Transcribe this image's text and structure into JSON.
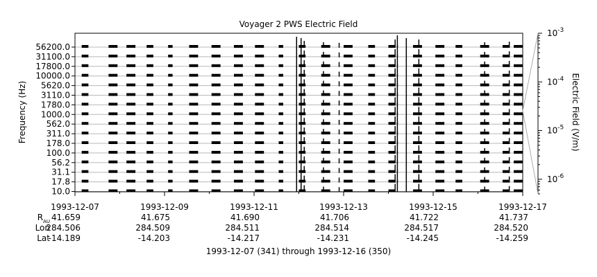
{
  "chart_data": {
    "type": "line",
    "title": "Voyager 2 PWS Electric Field",
    "ylabel": "Frequency (Hz)",
    "y2label": "Electric Field (V/m)",
    "xlabel": "1993-12-07 (341) through 1993-12-16 (350)",
    "frequency_channels": [
      "56200.0",
      "31100.0",
      "17800.0",
      "10000.0",
      "5620.0",
      "3110.0",
      "1780.0",
      "1000.0",
      "562.0",
      "311.0",
      "178.0",
      "100.0",
      "56.2",
      "31.1",
      "17.8",
      "10.0"
    ],
    "y2_scale": "log",
    "y2_range": [
      5e-07,
      0.001
    ],
    "y2_ticks": [
      {
        "base": "10",
        "exp": "-3",
        "value": 0.001
      },
      {
        "base": "10",
        "exp": "-4",
        "value": 0.0001
      },
      {
        "base": "10",
        "exp": "-5",
        "value": 1e-05
      },
      {
        "base": "10",
        "exp": "-6",
        "value": 1e-06
      }
    ],
    "x_range_days": [
      "1993-12-07",
      "1993-12-17"
    ],
    "x_ticks": [
      {
        "date": "1993-12-07",
        "r_au": "41.659",
        "lon": "284.506",
        "lat": "-14.189"
      },
      {
        "date": "1993-12-09",
        "r_au": "41.675",
        "lon": "284.509",
        "lat": "-14.203"
      },
      {
        "date": "1993-12-11",
        "r_au": "41.690",
        "lon": "284.511",
        "lat": "-14.217"
      },
      {
        "date": "1993-12-13",
        "r_au": "41.706",
        "lon": "284.514",
        "lat": "-14.231"
      },
      {
        "date": "1993-12-15",
        "r_au": "41.722",
        "lon": "284.517",
        "lat": "-14.245"
      },
      {
        "date": "1993-12-17",
        "r_au": "41.737",
        "lon": "284.520",
        "lat": "-14.259"
      }
    ],
    "ephemeris_labels": {
      "r_main": "R",
      "r_sub": "AU",
      "lon": "Lon",
      "lat": "Lat"
    },
    "grid": true,
    "data_segments_days": [
      [
        0.15,
        0.3
      ],
      [
        0.75,
        0.95
      ],
      [
        1.15,
        1.35
      ],
      [
        1.6,
        1.75
      ],
      [
        2.08,
        2.18
      ],
      [
        2.55,
        2.75
      ],
      [
        3.05,
        3.25
      ],
      [
        3.55,
        3.75
      ],
      [
        4.02,
        4.22
      ],
      [
        4.55,
        4.65
      ],
      [
        5.0,
        5.15
      ],
      [
        5.5,
        5.7
      ],
      [
        6.0,
        6.2
      ],
      [
        6.55,
        6.7
      ],
      [
        7.0,
        7.15
      ],
      [
        7.55,
        7.75
      ],
      [
        8.05,
        8.25
      ],
      [
        8.5,
        8.65
      ],
      [
        9.05,
        9.25
      ],
      [
        9.55,
        9.7
      ],
      [
        9.8,
        10.0
      ]
    ],
    "bursts": [
      {
        "day": 4.95,
        "height": 3.0
      },
      {
        "day": 5.05,
        "height": 2.5
      },
      {
        "day": 5.12,
        "height": 1.5
      },
      {
        "day": 5.55,
        "height": 1.0
      },
      {
        "day": 5.9,
        "height": 0.8
      },
      {
        "day": 7.15,
        "height": 2.0
      },
      {
        "day": 7.2,
        "height": 3.5
      },
      {
        "day": 7.4,
        "height": 2.5
      },
      {
        "day": 7.68,
        "height": 2.0
      },
      {
        "day": 9.15,
        "height": 1.0
      },
      {
        "day": 9.7,
        "height": 1.2
      }
    ]
  }
}
